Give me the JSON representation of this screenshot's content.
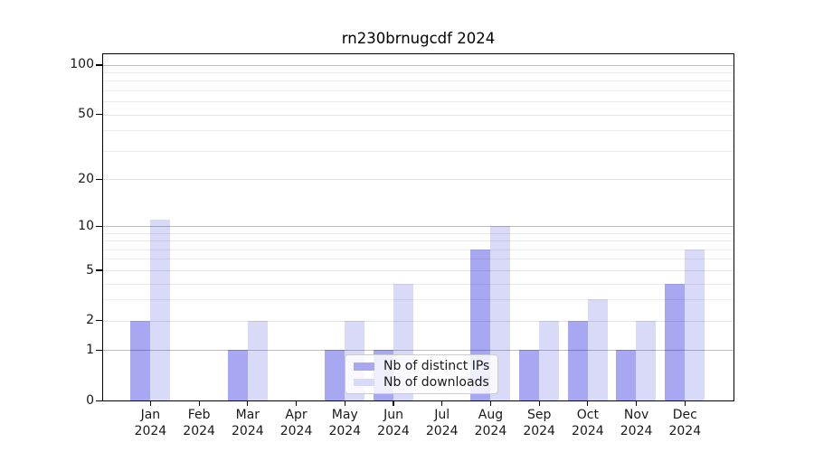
{
  "chart_data": {
    "type": "bar",
    "title": "rn230brnugcdf 2024",
    "categories": [
      "Jan 2024",
      "Feb 2024",
      "Mar 2024",
      "Apr 2024",
      "May 2024",
      "Jun 2024",
      "Jul 2024",
      "Aug 2024",
      "Sep 2024",
      "Oct 2024",
      "Nov 2024",
      "Dec 2024"
    ],
    "series": [
      {
        "name": "Nb of distinct IPs",
        "color": "#a8a8f2",
        "values": [
          2,
          0,
          1,
          0,
          1,
          1,
          0,
          7,
          1,
          2,
          1,
          4
        ]
      },
      {
        "name": "Nb of downloads",
        "color": "#d9d9f8",
        "values": [
          11,
          0,
          2,
          0,
          2,
          4,
          0,
          10,
          2,
          3,
          2,
          7
        ]
      }
    ],
    "xlabel": "",
    "ylabel": "",
    "yscale": "log1p",
    "ylim": [
      0,
      117
    ],
    "yticks": [
      0,
      1,
      2,
      5,
      10,
      20,
      50,
      100
    ],
    "ytick_labels": [
      "0",
      "1",
      "2",
      "5",
      "10",
      "20",
      "50",
      "100"
    ],
    "minor_gridlines": [
      3,
      4,
      6,
      7,
      8,
      9,
      30,
      40,
      60,
      70,
      80,
      90
    ],
    "decade_gridlines": [
      1,
      10,
      100
    ],
    "grid": true,
    "legend_position": "lower center"
  },
  "colors": {
    "background": "#ffffff",
    "axis": "#000000",
    "tick_text": "#191919",
    "legend_border": "#cccccc",
    "distinct_ips_bar": "#a8a8f2",
    "downloads_bar": "#d9d9f8"
  }
}
